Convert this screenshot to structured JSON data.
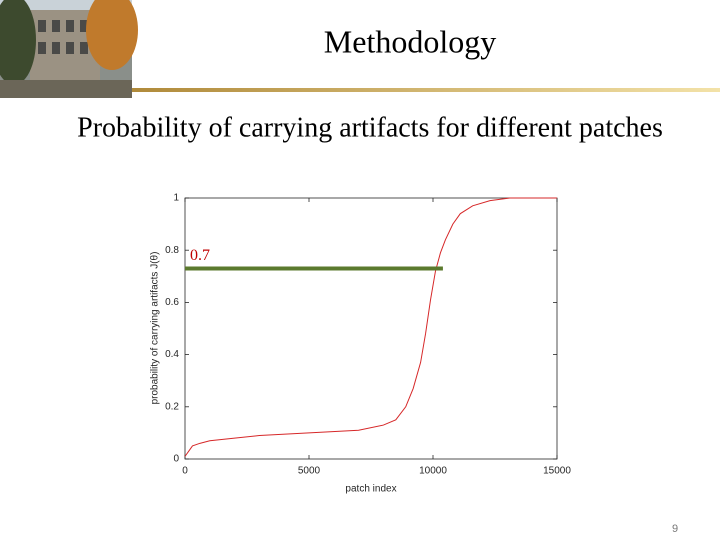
{
  "header": {
    "title": "Methodology"
  },
  "subtitle": "Probability of carrying artifacts for different patches",
  "page_number": "9",
  "chart_data": {
    "type": "line",
    "x_label": "patch index",
    "y_label": "probability of carrying artifacts J(θ)",
    "xlim": [
      0,
      15000
    ],
    "xticks": [
      0,
      5000,
      10000,
      15000
    ],
    "ylim": [
      0,
      1
    ],
    "yticks": [
      0,
      0.2,
      0.4,
      0.6,
      0.8,
      1
    ],
    "series": [
      {
        "name": "J(θ)",
        "color": "#d62728",
        "x": [
          0,
          150,
          300,
          600,
          1000,
          2000,
          3000,
          5000,
          7000,
          8000,
          8500,
          8900,
          9200,
          9500,
          9700,
          9900,
          10100,
          10300,
          10500,
          10800,
          11100,
          11600,
          12300,
          13100,
          15000
        ],
        "values": [
          0.01,
          0.03,
          0.05,
          0.06,
          0.07,
          0.08,
          0.09,
          0.1,
          0.11,
          0.13,
          0.15,
          0.2,
          0.27,
          0.37,
          0.48,
          0.61,
          0.72,
          0.79,
          0.84,
          0.9,
          0.94,
          0.97,
          0.99,
          1.0,
          1.0
        ]
      }
    ],
    "annotation": {
      "text": "0.7",
      "y": 0.73,
      "x_end": 10400,
      "color": "#5b7a2e",
      "text_color": "#c00000"
    }
  }
}
